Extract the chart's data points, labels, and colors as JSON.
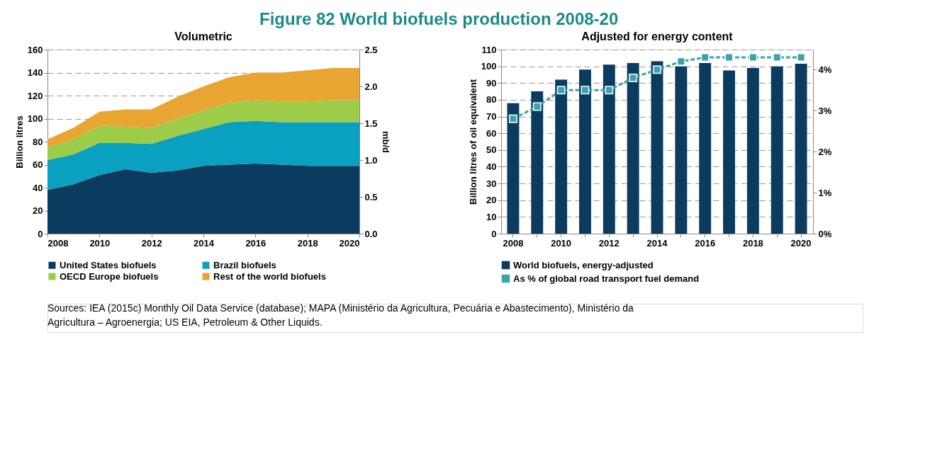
{
  "chart_data": [
    {
      "type": "area",
      "stacked": true,
      "title": "Figure 82  World biofuels production 2008-20",
      "subtitle": "Volumetric",
      "ylabel": "Billion litres",
      "y2label": "mb/d",
      "x": [
        2008,
        2009,
        2010,
        2011,
        2012,
        2013,
        2014,
        2015,
        2016,
        2017,
        2018,
        2019,
        2020
      ],
      "xlim": [
        2008,
        2020
      ],
      "xticks": [
        2008,
        2010,
        2012,
        2014,
        2016,
        2018,
        2020
      ],
      "ylim": [
        0,
        160
      ],
      "yticks": [
        0,
        20,
        40,
        60,
        80,
        100,
        120,
        140,
        160
      ],
      "y2lim": [
        0,
        2.5
      ],
      "y2ticks": [
        {
          "value": 0,
          "label": "0.0"
        },
        0.5,
        {
          "value": 1,
          "label": "1.0"
        },
        1.5,
        {
          "value": 2,
          "label": "2.0"
        },
        2.5
      ],
      "grid": "y",
      "legend": "bottom",
      "series": [
        {
          "name": "United States biofuels",
          "color": "#0b3b5f",
          "values": [
            38,
            43,
            51,
            56,
            53,
            55,
            59,
            60,
            61,
            60,
            59,
            59,
            59
          ]
        },
        {
          "name": "Brazil biofuels",
          "color": "#0aa0bf",
          "values": [
            26,
            26,
            28,
            23,
            25,
            30,
            32,
            37,
            37,
            37,
            38,
            38,
            38
          ]
        },
        {
          "name": "OECD Europe biofuels",
          "color": "#9ccc48",
          "values": [
            11,
            13,
            15,
            14,
            14,
            15,
            16,
            17,
            18,
            18,
            18,
            19,
            19
          ]
        },
        {
          "name": "Rest of the world biofuels",
          "color": "#e9a531",
          "values": [
            7,
            10,
            12,
            15,
            16,
            19,
            21,
            22,
            24,
            25,
            27,
            28,
            28
          ]
        }
      ]
    },
    {
      "type": "bar",
      "title": "Adjusted for energy content",
      "ylabel": "Billion litres of oil equivalent",
      "categories": [
        "2008",
        null,
        "2010",
        null,
        "2012",
        null,
        "2014",
        null,
        "2016",
        null,
        "2018",
        null,
        "2020"
      ],
      "ylim": [
        0,
        110
      ],
      "yticks": [
        0,
        10,
        20,
        30,
        40,
        50,
        60,
        70,
        80,
        90,
        100,
        110
      ],
      "y2lim": [
        0,
        4.49
      ],
      "y2ticks": [
        {
          "value": 0,
          "label": "0%"
        },
        {
          "value": 1,
          "label": "1%"
        },
        {
          "value": 2,
          "label": "2%"
        },
        {
          "value": 3,
          "label": "3%"
        },
        {
          "value": 4,
          "label": "4%"
        }
      ],
      "grid": "y",
      "legend": "bottom",
      "annotations": [
        "Sources: IEA (2015c) Monthly Oil Data Service (database); MAPA (Ministério da Agricultura, Pecuária e Abastecimento), Ministério da Agricultura – Agroenergia; US EIA, Petroleum & Other Liquids."
      ],
      "series": [
        {
          "name": "World biofuels, energy-adjusted",
          "color": "#0b3b5f",
          "values": [
            78,
            85,
            92,
            98,
            101,
            102,
            103,
            100,
            102,
            97.5,
            99,
            100,
            101.5
          ]
        },
        {
          "name": "As % of global road transport fuel demand",
          "type": "line",
          "axis": "y2",
          "marker": "square",
          "line_style": "dashed",
          "color": "#3aa3b0",
          "values": [
            2.8,
            3.1,
            3.5,
            3.5,
            3.5,
            3.8,
            4.0,
            4.2,
            4.3,
            4.3,
            4.3,
            4.3,
            4.3
          ]
        }
      ]
    }
  ]
}
